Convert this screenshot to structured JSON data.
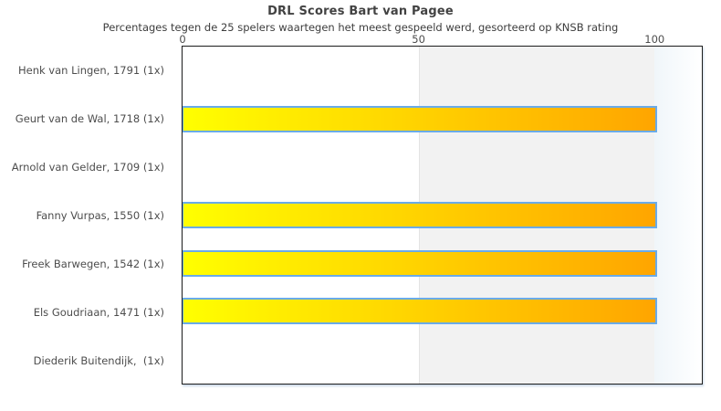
{
  "title": "DRL Scores Bart van Pagee",
  "subtitle": "Percentages tegen de 25 spelers waartegen het meest gespeeld werd, gesorteerd op KNSB rating",
  "chart_data": {
    "type": "bar",
    "orientation": "horizontal",
    "title": "DRL Scores Bart van Pagee",
    "subtitle": "Percentages tegen de 25 spelers waartegen het meest gespeeld werd, gesorteerd op KNSB rating",
    "categories": [
      "Henk van Lingen, 1791 (1x)",
      "Geurt van de Wal, 1718 (1x)",
      "Arnold van Gelder, 1709 (1x)",
      "Fanny Vurpas, 1550 (1x)",
      "Freek Barwegen, 1542 (1x)",
      "Els Goudriaan, 1471 (1x)",
      "Diederik Buitendijk,  (1x)"
    ],
    "values": [
      0,
      100,
      0,
      100,
      100,
      100,
      0
    ],
    "x_axis": {
      "ticks": [
        "0",
        "50",
        "100"
      ],
      "tick_values": [
        0,
        50,
        100
      ],
      "lim": [
        0,
        110
      ],
      "position": "top"
    },
    "grid": false,
    "legend": false,
    "shaded_band": {
      "from": 50,
      "to": 100,
      "color": "#f2f2f2",
      "edge_color": "#e4e4e4"
    },
    "right_margin_band": {
      "from": 100,
      "gradient_start": "#f0f6fa",
      "gradient_end": "#ffffff"
    },
    "bar_style": {
      "gradient_start": "#ffff00",
      "gradient_end": "#ffa500",
      "border_color": "#6aabe8"
    },
    "frame_color": "#1c1c1c",
    "background": "#ffffff"
  }
}
